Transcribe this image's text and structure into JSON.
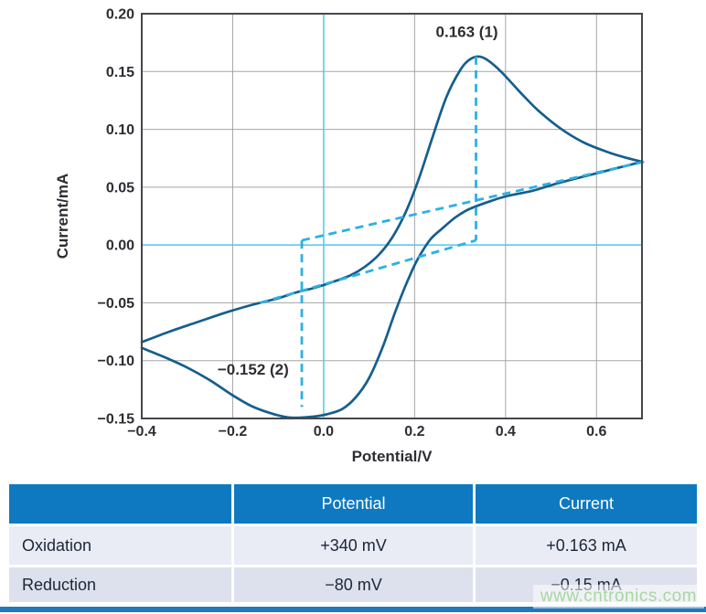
{
  "chart_data": {
    "type": "line",
    "title": "",
    "xlabel": "Potential/V",
    "ylabel": "Current/mA",
    "xlim": [
      -0.4,
      0.7
    ],
    "ylim": [
      -0.15,
      0.2
    ],
    "grid": true,
    "x_ticks": {
      "values": [
        -0.4,
        -0.2,
        0.0,
        0.2,
        0.4,
        0.6
      ],
      "labels": [
        "−0.4",
        "−0.2",
        "0.0",
        "0.2",
        "0.4",
        "0.6"
      ]
    },
    "y_ticks": {
      "values": [
        0.2,
        0.15,
        0.1,
        0.05,
        0.0,
        -0.05,
        -0.1,
        -0.15
      ],
      "labels": [
        "0.20",
        "0.15",
        "0.10",
        "0.05",
        "0.00",
        "−0.05",
        "−0.10",
        "−0.15"
      ]
    },
    "gridlines": {
      "x": [
        -0.2,
        0.2,
        0.4,
        0.6
      ],
      "y": [
        0.15,
        0.1,
        0.05,
        -0.05,
        -0.1
      ]
    },
    "zero_axes": {
      "x": 0.0,
      "y": 0.0
    },
    "series": [
      {
        "name": "cv-forward-scan",
        "style": "solid",
        "points": [
          [
            -0.4,
            -0.084
          ],
          [
            -0.34,
            -0.075
          ],
          [
            -0.28,
            -0.067
          ],
          [
            -0.22,
            -0.059
          ],
          [
            -0.16,
            -0.052
          ],
          [
            -0.1,
            -0.046
          ],
          [
            -0.06,
            -0.041
          ],
          [
            -0.02,
            -0.037
          ],
          [
            0.02,
            -0.032
          ],
          [
            0.06,
            -0.026
          ],
          [
            0.09,
            -0.019
          ],
          [
            0.12,
            -0.009
          ],
          [
            0.15,
            0.006
          ],
          [
            0.18,
            0.028
          ],
          [
            0.21,
            0.058
          ],
          [
            0.24,
            0.094
          ],
          [
            0.27,
            0.128
          ],
          [
            0.3,
            0.151
          ],
          [
            0.32,
            0.16
          ],
          [
            0.34,
            0.163
          ],
          [
            0.36,
            0.16
          ],
          [
            0.39,
            0.15
          ],
          [
            0.43,
            0.133
          ],
          [
            0.47,
            0.117
          ],
          [
            0.52,
            0.101
          ],
          [
            0.57,
            0.089
          ],
          [
            0.62,
            0.081
          ],
          [
            0.66,
            0.076
          ],
          [
            0.7,
            0.072
          ]
        ]
      },
      {
        "name": "cv-reverse-scan",
        "style": "solid",
        "points": [
          [
            0.7,
            0.072
          ],
          [
            0.64,
            0.066
          ],
          [
            0.58,
            0.06
          ],
          [
            0.52,
            0.054
          ],
          [
            0.46,
            0.047
          ],
          [
            0.4,
            0.042
          ],
          [
            0.36,
            0.037
          ],
          [
            0.32,
            0.031
          ],
          [
            0.29,
            0.024
          ],
          [
            0.26,
            0.014
          ],
          [
            0.235,
            0.005
          ],
          [
            0.21,
            -0.01
          ],
          [
            0.19,
            -0.026
          ],
          [
            0.16,
            -0.055
          ],
          [
            0.13,
            -0.088
          ],
          [
            0.1,
            -0.115
          ],
          [
            0.07,
            -0.132
          ],
          [
            0.04,
            -0.142
          ],
          [
            0.0,
            -0.147
          ],
          [
            -0.04,
            -0.149
          ],
          [
            -0.08,
            -0.149
          ],
          [
            -0.12,
            -0.145
          ],
          [
            -0.16,
            -0.139
          ],
          [
            -0.2,
            -0.13
          ],
          [
            -0.25,
            -0.117
          ],
          [
            -0.3,
            -0.106
          ],
          [
            -0.35,
            -0.097
          ],
          [
            -0.4,
            -0.089
          ]
        ]
      }
    ],
    "guides": [
      {
        "name": "oxidation-baseline",
        "style": "dashed",
        "points": [
          [
            -0.14,
            -0.05
          ],
          [
            0.335,
            0.004
          ]
        ]
      },
      {
        "name": "reduction-baseline",
        "style": "dashed",
        "points": [
          [
            -0.048,
            0.004
          ],
          [
            0.705,
            0.072
          ]
        ]
      },
      {
        "name": "oxidation-peak-marker",
        "style": "dashed",
        "points": [
          [
            0.335,
            0.163
          ],
          [
            0.335,
            0.004
          ]
        ]
      },
      {
        "name": "reduction-peak-marker",
        "style": "dashed",
        "points": [
          [
            -0.048,
            0.004
          ],
          [
            -0.048,
            -0.14
          ]
        ]
      }
    ],
    "annotations": [
      {
        "text": "0.163 (1)",
        "x": 0.315,
        "y": 0.18
      },
      {
        "text": "−0.152 (2)",
        "x": -0.155,
        "y": -0.112
      }
    ],
    "oxidation_peak": {
      "potential_V": 0.34,
      "current_mA": 0.163
    },
    "reduction_peak": {
      "potential_V": -0.08,
      "current_mA": -0.15
    }
  },
  "colors": {
    "curve": "#155e8e",
    "dashed": "#2bb1e3",
    "zero_axis": "#4ec7ea",
    "grid": "#a5a5a9",
    "frame": "#46464b",
    "tick_text": "#2d2d33",
    "table_header_bg": "#0e79c0",
    "table_row1_bg": "#e9ecf5",
    "table_row2_bg": "#dde1ee",
    "table_text": "#1d2636",
    "bottom_bar": "#2178bf",
    "watermark": "#a7d79f"
  },
  "table": {
    "headers": [
      "",
      "Potential",
      "Current"
    ],
    "rows": [
      {
        "label": "Oxidation",
        "potential": "+340 mV",
        "current": "+0.163 mA"
      },
      {
        "label": "Reduction",
        "potential": "−80 mV",
        "current": "−0.15 mA"
      }
    ]
  },
  "watermark": {
    "text": "www.cntronics.com"
  }
}
